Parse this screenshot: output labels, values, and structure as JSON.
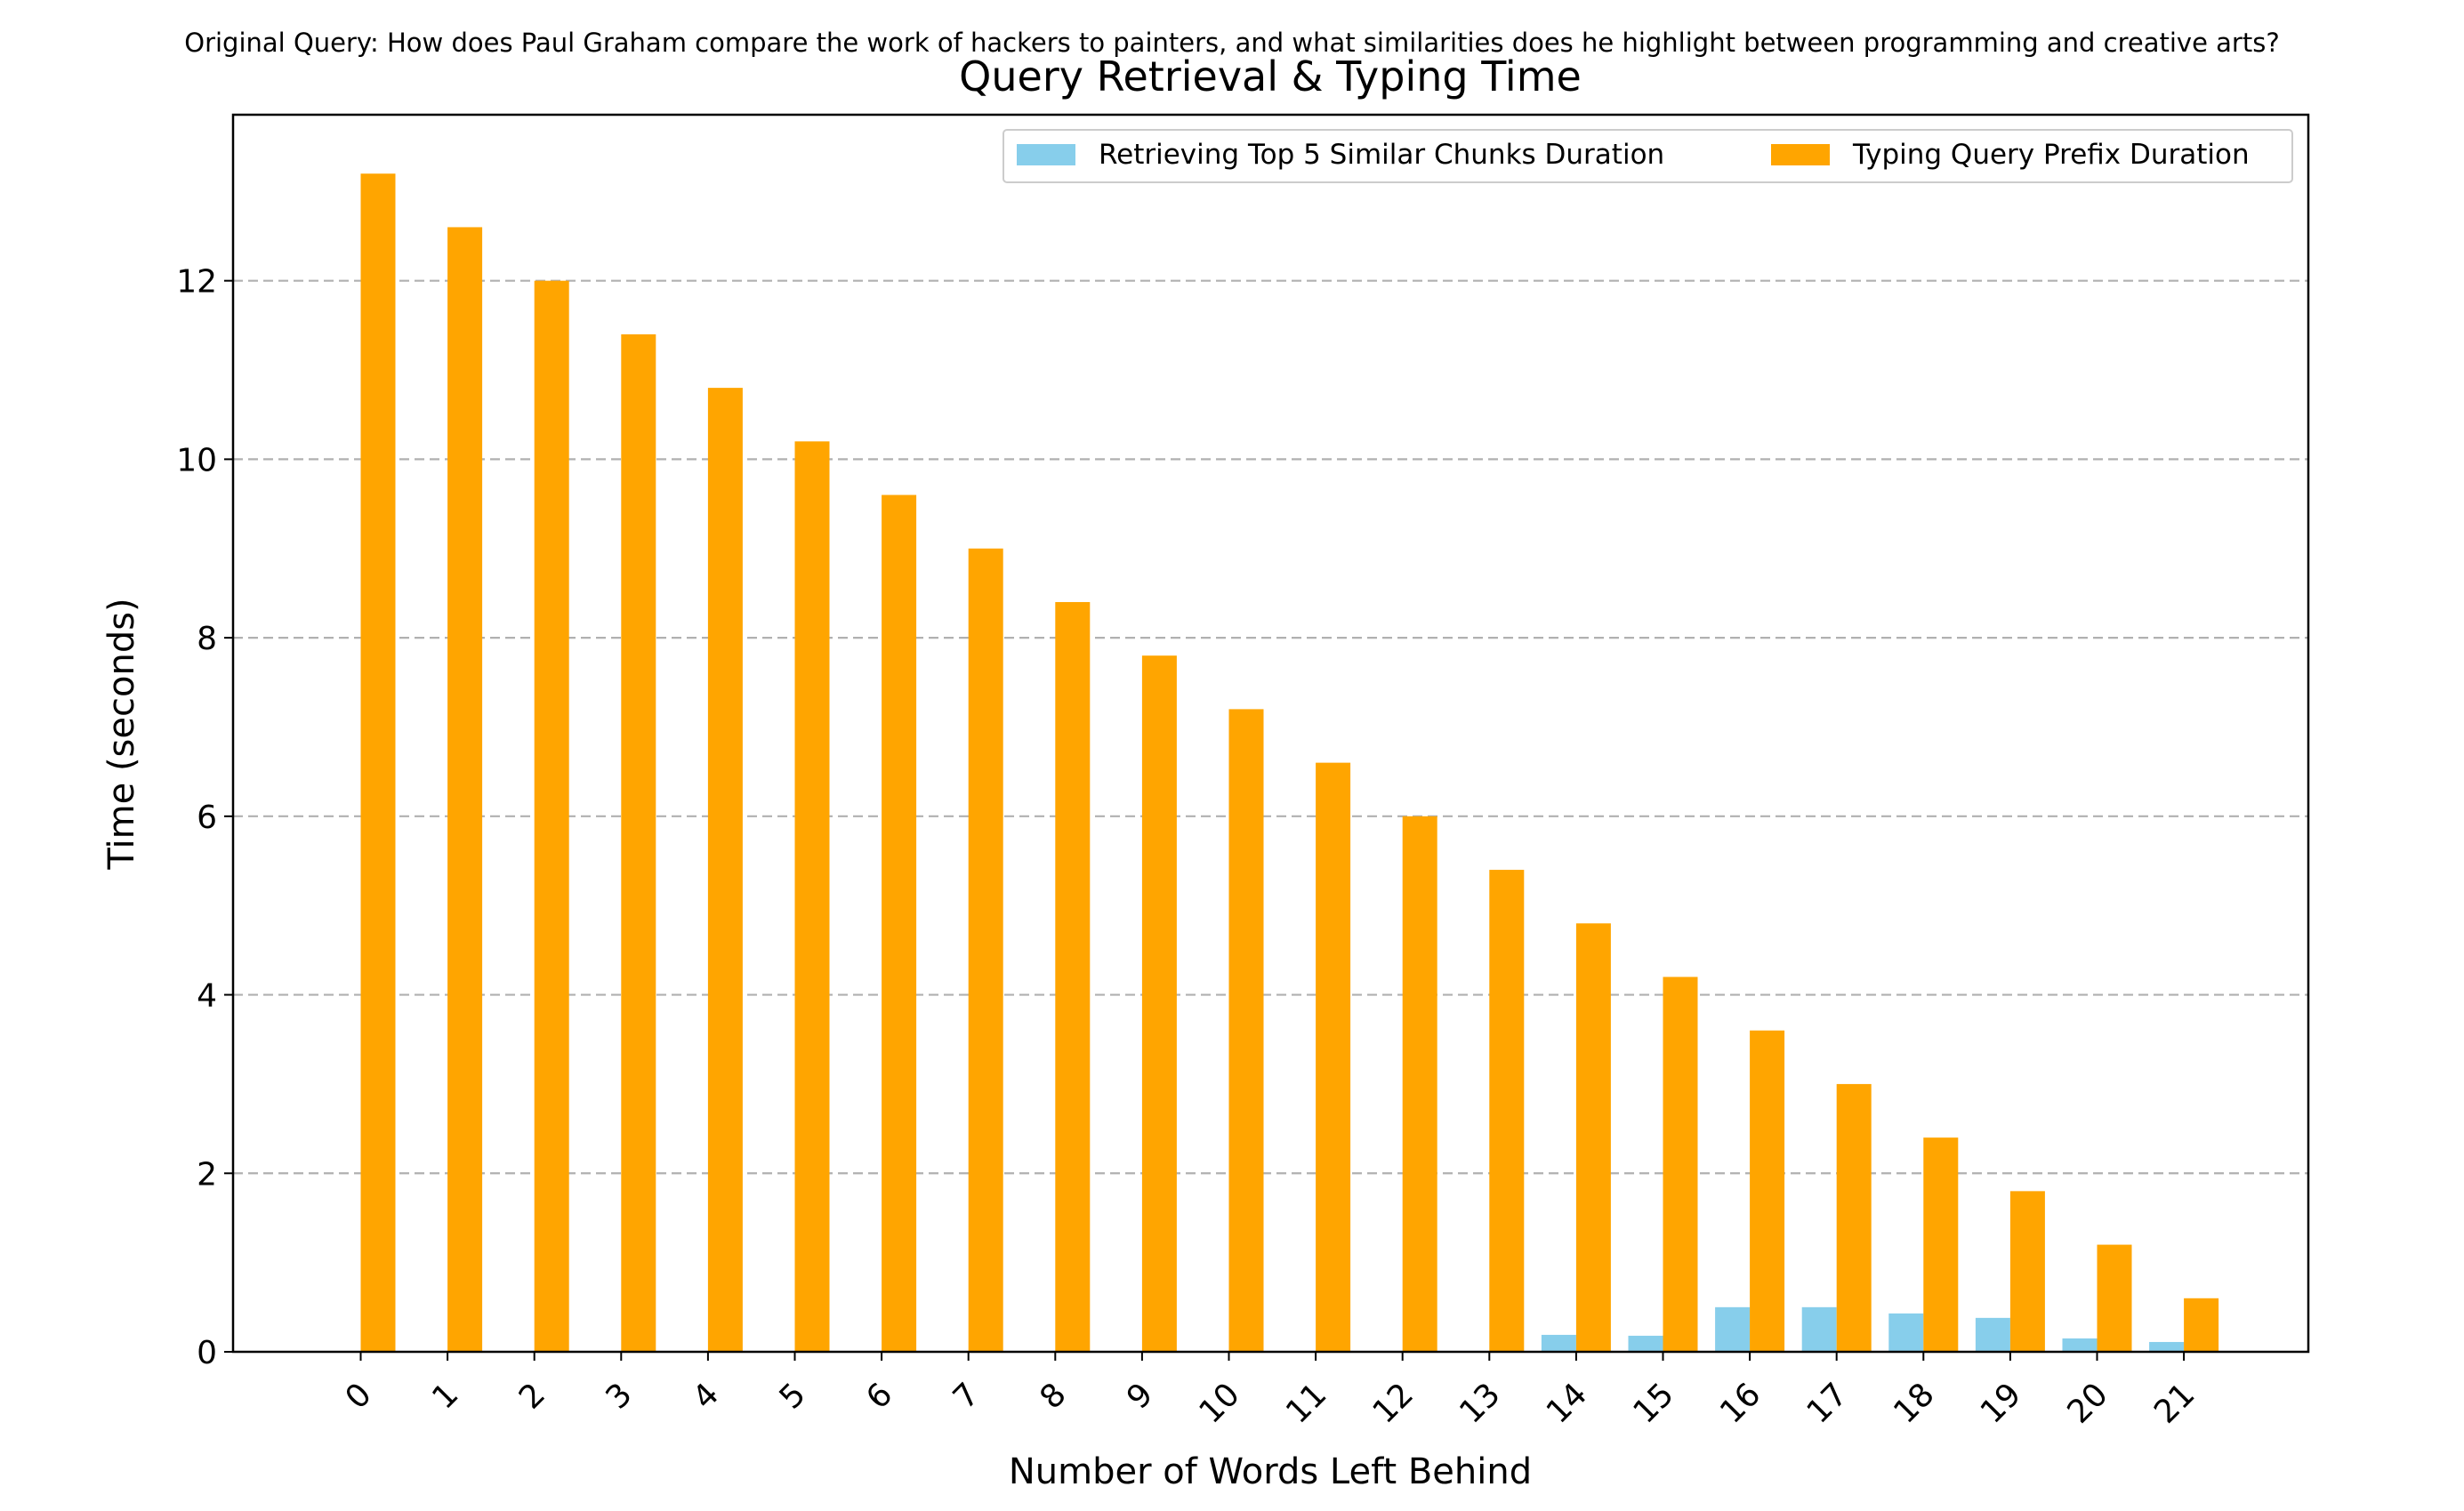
{
  "suptitle": "Original Query: How does Paul Graham compare the work of hackers to painters, and what similarities does he highlight between programming and creative arts?",
  "chart_data": {
    "type": "bar",
    "title": "Query Retrieval & Typing Time",
    "xlabel": "Number of Words Left Behind",
    "ylabel": "Time (seconds)",
    "categories": [
      "0",
      "1",
      "2",
      "3",
      "4",
      "5",
      "6",
      "7",
      "8",
      "9",
      "10",
      "11",
      "12",
      "13",
      "14",
      "15",
      "16",
      "17",
      "18",
      "19",
      "20",
      "21"
    ],
    "ylim": [
      0,
      13.86
    ],
    "yticks": [
      0,
      2,
      4,
      6,
      8,
      10,
      12
    ],
    "grid": "y-dashed",
    "legend_position": "top-right",
    "series": [
      {
        "name": "Retrieving Top 5 Similar Chunks Duration",
        "color": "#87ceeb",
        "values": [
          0,
          0,
          0,
          0,
          0,
          0,
          0,
          0,
          0,
          0,
          0,
          0,
          0,
          0,
          0.19,
          0.18,
          0.5,
          0.5,
          0.43,
          0.38,
          0.15,
          0.11
        ]
      },
      {
        "name": "Typing Query Prefix Duration",
        "color": "#ffa500",
        "values": [
          13.2,
          12.6,
          12.0,
          11.4,
          10.8,
          10.2,
          9.6,
          9.0,
          8.4,
          7.8,
          7.2,
          6.6,
          6.0,
          5.4,
          4.8,
          4.2,
          3.6,
          3.0,
          2.4,
          1.8,
          1.2,
          0.6
        ]
      }
    ]
  }
}
